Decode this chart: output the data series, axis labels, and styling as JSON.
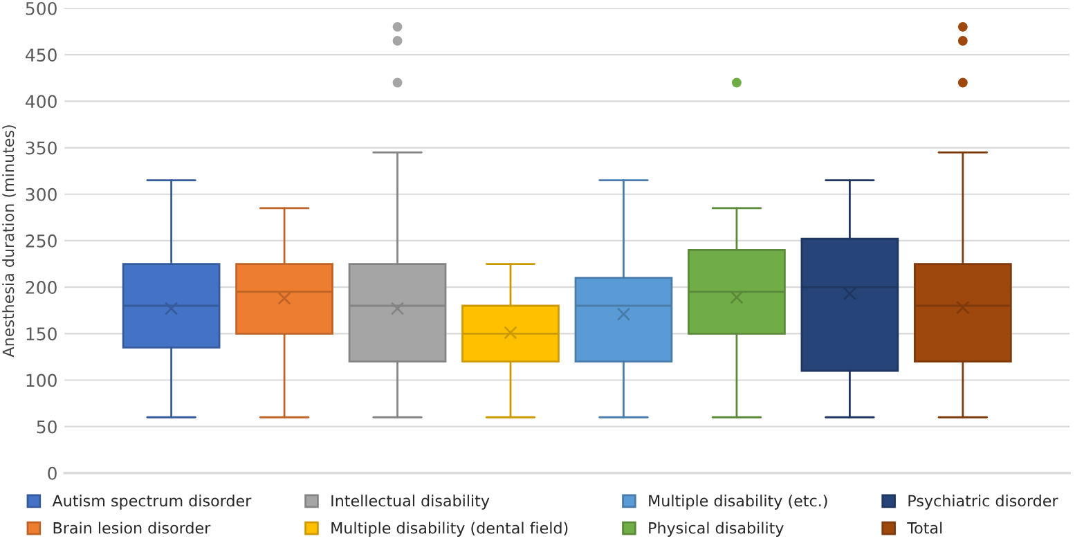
{
  "chart_data": {
    "type": "box",
    "ylabel": "Anesthesia duration (minutes)",
    "categories": [
      null
    ],
    "ylim": [
      0,
      500
    ],
    "yticks": [
      0,
      50,
      100,
      150,
      200,
      250,
      300,
      350,
      400,
      450,
      500
    ],
    "grid": "y",
    "legend": "bottom",
    "marker": "cross",
    "series": [
      {
        "name": "Autism spectrum disorder",
        "color": "#4472c4",
        "boxes": [
          {
            "low": 60,
            "q1": 135,
            "median": 180,
            "q3": 225,
            "high": 315,
            "mean": 177
          }
        ]
      },
      {
        "name": "Brain lesion disorder",
        "color": "#ed7d31",
        "boxes": [
          {
            "low": 60,
            "q1": 150,
            "median": 195,
            "q3": 225,
            "high": 285,
            "mean": 188
          }
        ]
      },
      {
        "name": "Intellectual disability",
        "color": "#a5a5a5",
        "boxes": [
          {
            "low": 60,
            "q1": 120,
            "median": 180,
            "q3": 225,
            "high": 345,
            "mean": 177,
            "outliers": [
              420,
              465,
              480
            ]
          }
        ]
      },
      {
        "name": "Multiple disability (dental field)",
        "color": "#ffc000",
        "boxes": [
          {
            "low": 60,
            "q1": 120,
            "median": 150,
            "q3": 180,
            "high": 225,
            "mean": 151
          }
        ]
      },
      {
        "name": "Multiple disability (etc.)",
        "color": "#5b9bd5",
        "boxes": [
          {
            "low": 60,
            "q1": 120,
            "median": 180,
            "q3": 210,
            "high": 315,
            "mean": 171
          }
        ]
      },
      {
        "name": "Physical disability",
        "color": "#70ad47",
        "boxes": [
          {
            "low": 60,
            "q1": 150,
            "median": 195,
            "q3": 240,
            "high": 285,
            "mean": 189,
            "outliers": [
              420
            ]
          }
        ]
      },
      {
        "name": "Psychiatric disorder",
        "color": "#264478",
        "boxes": [
          {
            "low": 60,
            "q1": 110,
            "median": 200,
            "q3": 252,
            "high": 315,
            "mean": 193
          }
        ]
      },
      {
        "name": "Total",
        "color": "#9e480e",
        "boxes": [
          {
            "low": 60,
            "q1": 120,
            "median": 180,
            "q3": 225,
            "high": 345,
            "mean": 178,
            "outliers": [
              420,
              465,
              480
            ]
          }
        ]
      }
    ]
  }
}
